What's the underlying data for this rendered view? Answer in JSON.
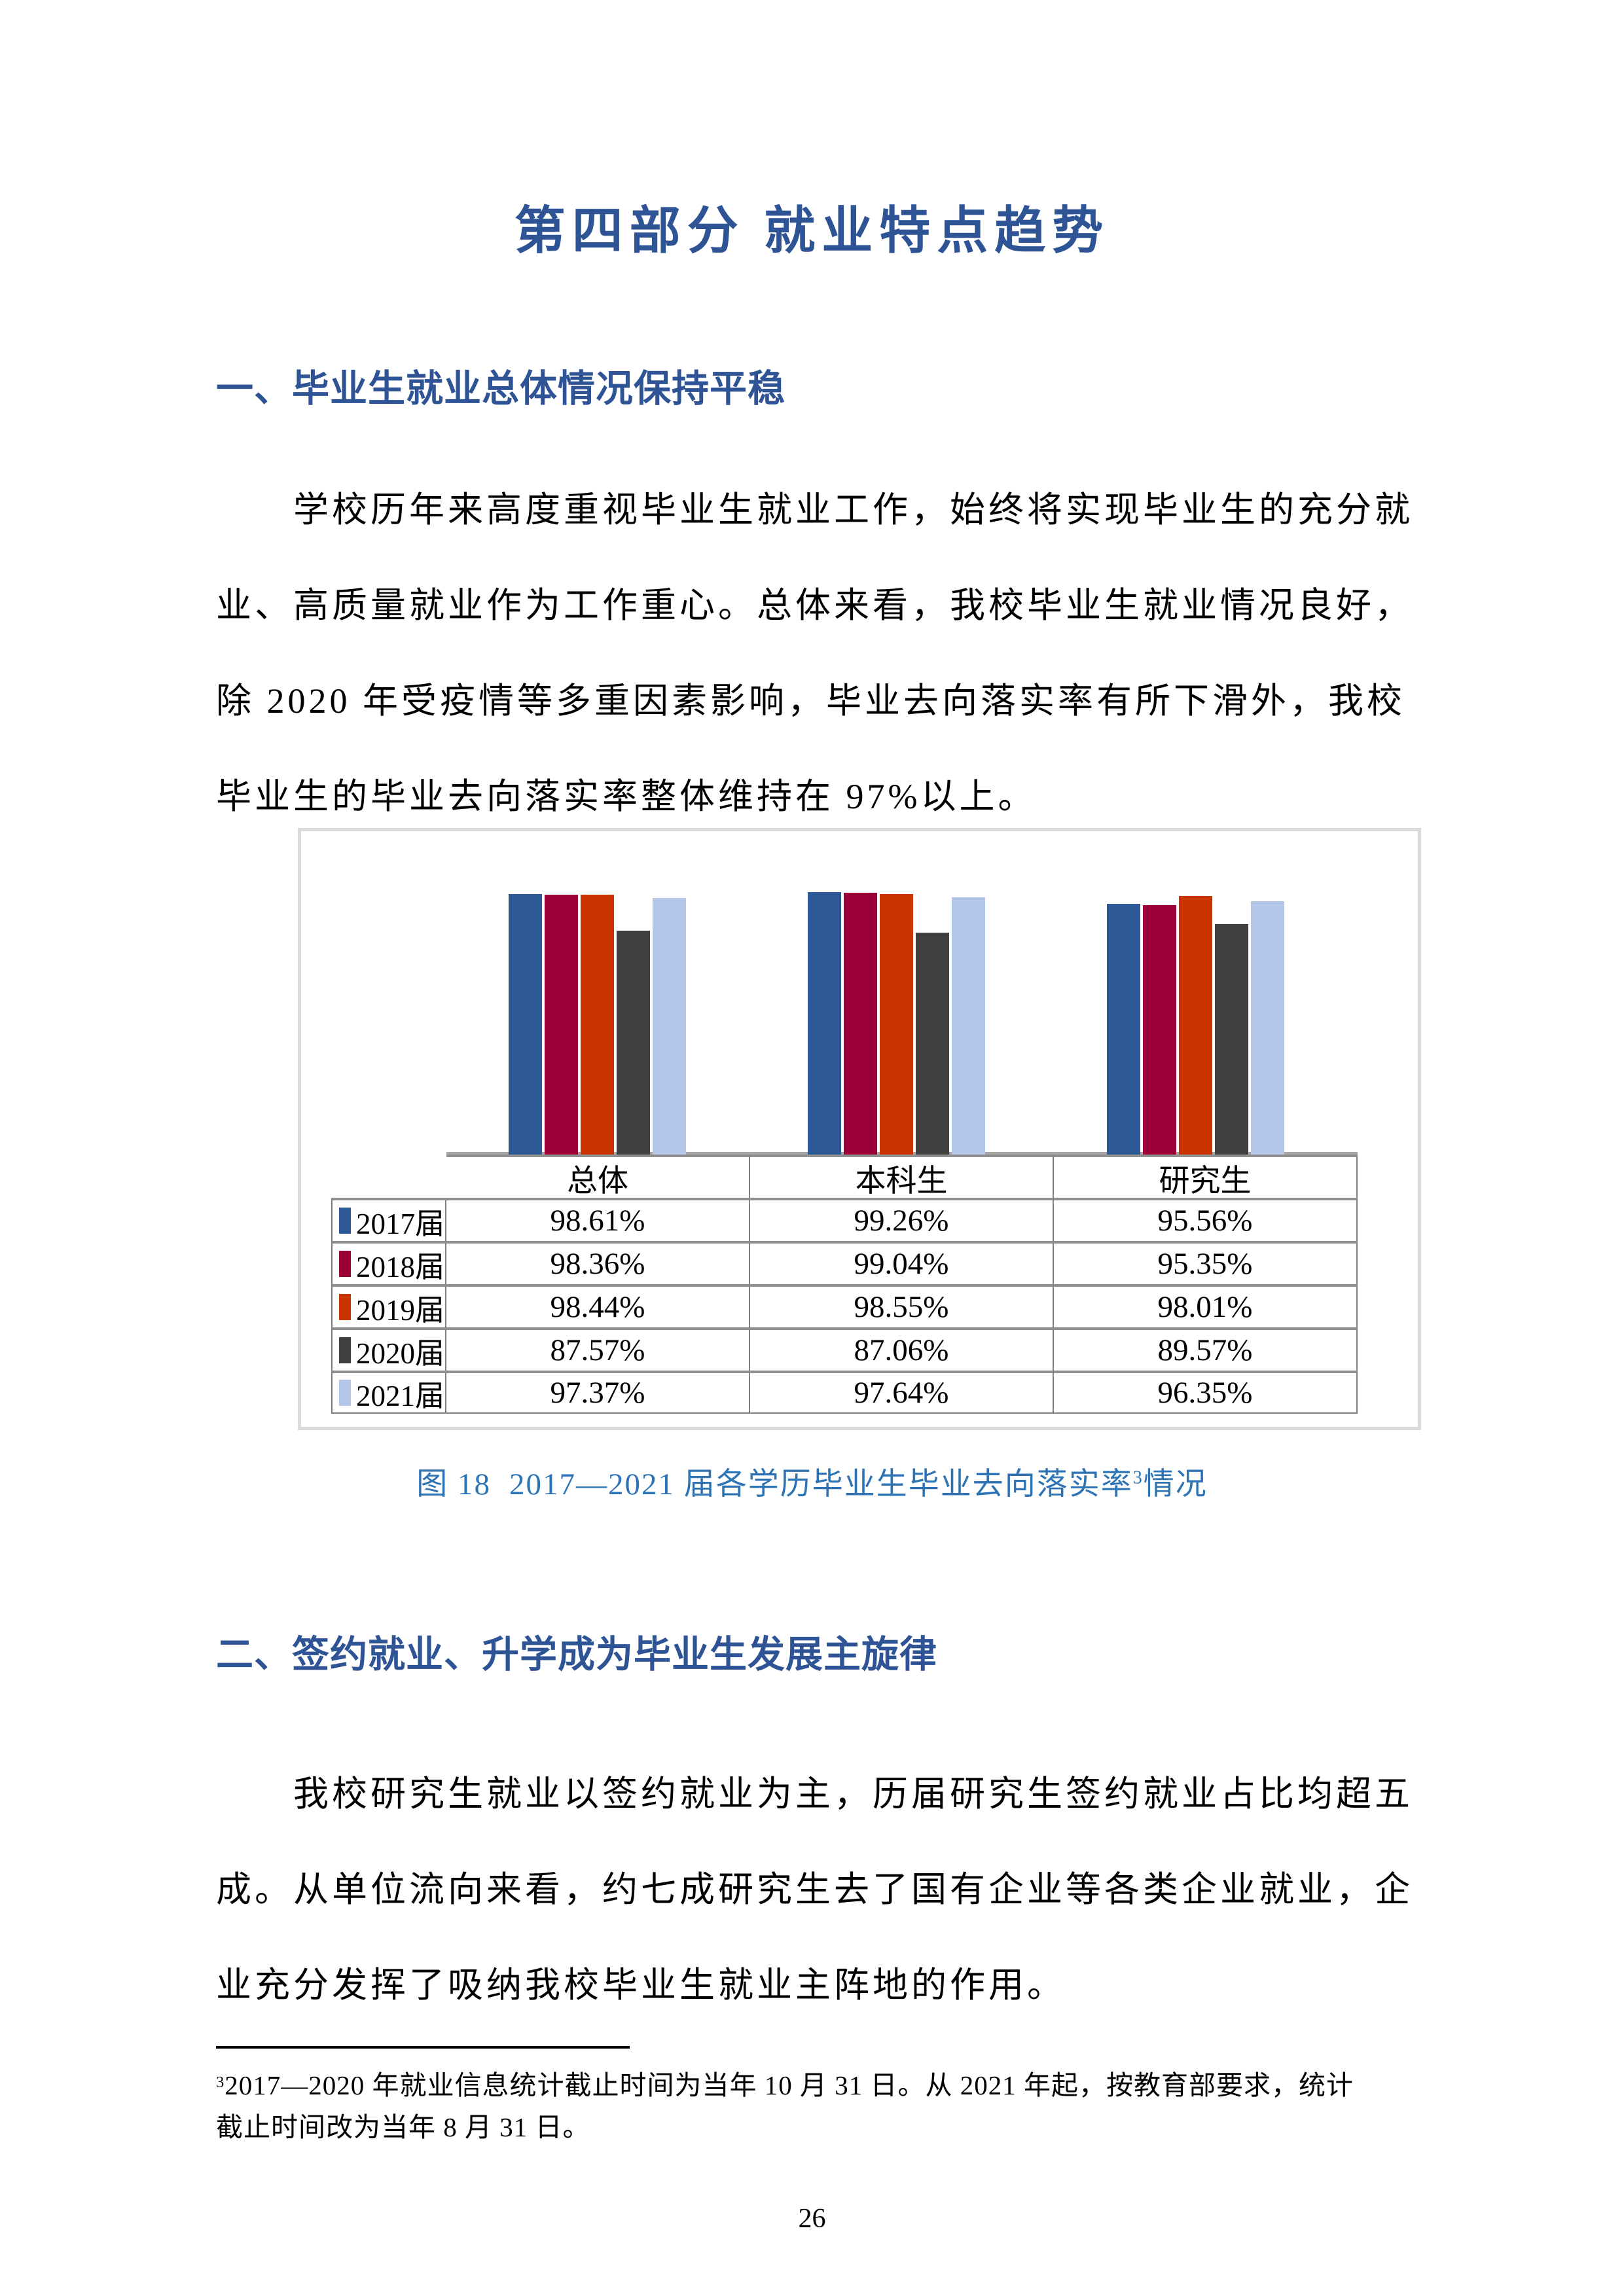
{
  "title": "第四部分 就业特点趋势",
  "sections": [
    {
      "heading": "一、毕业生就业总体情况保持平稳",
      "paragraph_lines": [
        "学校历年来高度重视毕业生就业工作，始终将实现毕业生的充分就",
        "业、高质量就业作为工作重心。总体来看，我校毕业生就业情况良好，",
        "除 2020 年受疫情等多重因素影响，毕业去向落实率有所下滑外，我校",
        "毕业生的毕业去向落实率整体维持在 97%以上。"
      ]
    },
    {
      "heading": "二、签约就业、升学成为毕业生发展主旋律",
      "paragraph_lines": [
        "我校研究生就业以签约就业为主，历届研究生签约就业占比均超五",
        "成。从单位流向来看，约七成研究生去了国有企业等各类企业就业，企",
        "业充分发挥了吸纳我校毕业生就业主阵地的作用。"
      ]
    }
  ],
  "figure_caption": {
    "label": "图 18",
    "body": "2017—2021 届各学历毕业生毕业去向落实率",
    "footnote_ref": "3",
    "tail": "情况"
  },
  "chart_data": {
    "type": "bar",
    "title": "2017—2021届各学历毕业生毕业去向落实率情况",
    "categories": [
      "总体",
      "本科生",
      "研究生"
    ],
    "series": [
      {
        "name": "2017届",
        "color": "#2E5B97",
        "values": [
          98.61,
          99.26,
          95.56
        ]
      },
      {
        "name": "2018届",
        "color": "#9C0038",
        "values": [
          98.36,
          99.04,
          95.35
        ]
      },
      {
        "name": "2019届",
        "color": "#C93400",
        "values": [
          98.44,
          98.55,
          98.01
        ]
      },
      {
        "name": "2020届",
        "color": "#404040",
        "values": [
          87.57,
          87.06,
          89.57
        ]
      },
      {
        "name": "2021届",
        "color": "#B4C6E7",
        "values": [
          97.37,
          97.64,
          96.35
        ]
      }
    ],
    "value_format": "percent",
    "ylim": [
      20,
      100
    ],
    "grid": false,
    "legend_position": "data-table-left",
    "data_table_shown": true
  },
  "footnote": {
    "ref": "3",
    "lines": [
      "2017—2020 年就业信息统计截止时间为当年 10 月 31 日。从 2021 年起，按教育部要求，统计",
      "截止时间改为当年 8 月 31 日。"
    ]
  },
  "page": {
    "number": "26"
  },
  "colors": {
    "heading_blue": "#2F5496",
    "caption_blue": "#2E74B5",
    "figure_border": "#D9D9D9",
    "table_border": "#808080",
    "axis_line": "#A6A6A6"
  }
}
